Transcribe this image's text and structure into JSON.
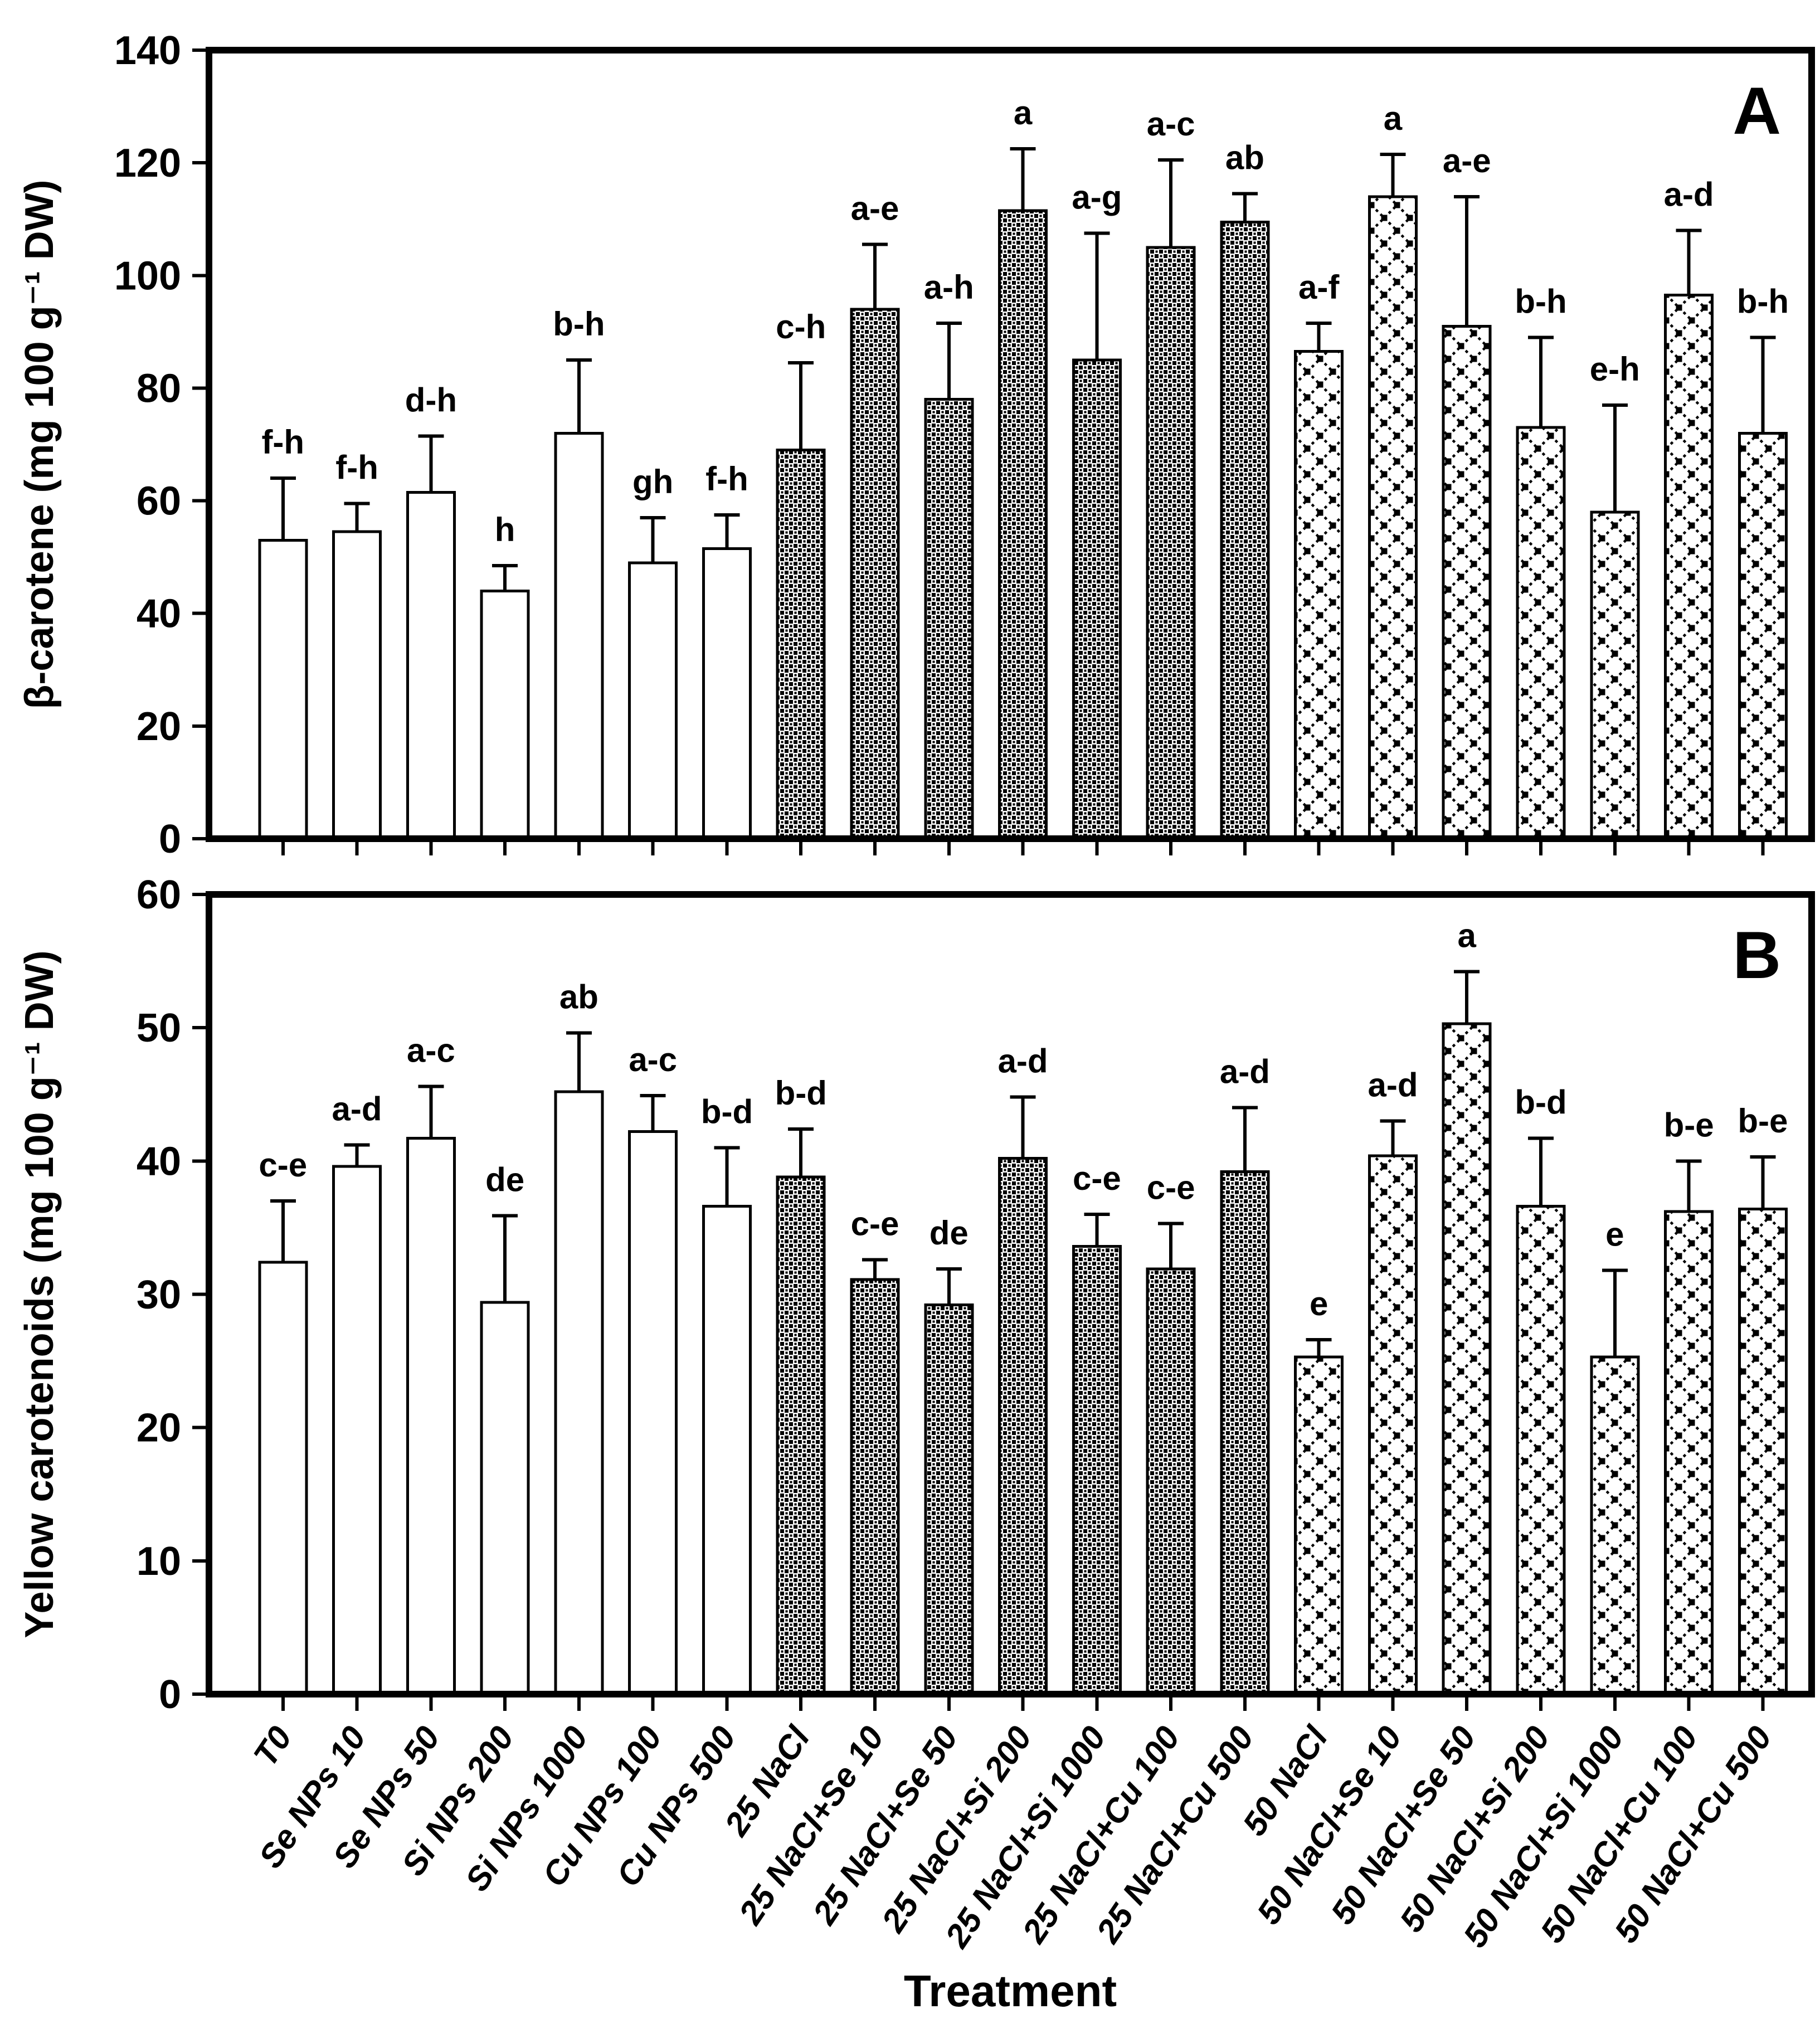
{
  "figure_background": "#ffffff",
  "ink_color": "#000000",
  "x_axis_title": "Treatment",
  "chart_data": [
    {
      "type": "bar",
      "panel_label": "A",
      "ylabel": "β-carotene (mg 100 g⁻¹ DW)",
      "xlabel": "Treatment",
      "ylim": [
        0,
        140
      ],
      "ytick_step": 20,
      "yticks": [
        0,
        20,
        40,
        60,
        80,
        100,
        120,
        140
      ],
      "grid": false,
      "legend": "none",
      "categories": [
        "T0",
        "Se NPs 10",
        "Se NPs 50",
        "Si NPs 200",
        "Si NPs 1000",
        "Cu NPs 100",
        "Cu NPs 500",
        "25 NaCl",
        "25 NaCl+Se 10",
        "25 NaCl+Se 50",
        "25 NaCl+Si 200",
        "25 NaCl+Si 1000",
        "25 NaCl+Cu 100",
        "25 NaCl+Cu 500",
        "50 NaCl",
        "50 NaCl+Se 10",
        "50 NaCl+Se 50",
        "50 NaCl+Si 200",
        "50 NaCl+Si 1000",
        "50 NaCl+Cu 100",
        "50 NaCl+Cu 500"
      ],
      "values": [
        53,
        54.5,
        61.5,
        44,
        72,
        49,
        51.5,
        69,
        94,
        78,
        111.5,
        85,
        105,
        109.5,
        86.5,
        114,
        91,
        73,
        58,
        96.5,
        72
      ],
      "errors_plus": [
        11,
        5,
        10,
        4.5,
        13,
        8,
        6,
        15.5,
        11.5,
        13.5,
        11,
        22.5,
        15.5,
        5,
        5,
        7.5,
        23,
        16,
        19,
        11.5,
        17
      ],
      "sig_letters": [
        "f-h",
        "f-h",
        "d-h",
        "h",
        "b-h",
        "gh",
        "f-h",
        "c-h",
        "a-e",
        "a-h",
        "a",
        "a-g",
        "a-c",
        "ab",
        "a-f",
        "a",
        "a-e",
        "b-h",
        "e-h",
        "a-d",
        "b-h"
      ],
      "bar_patterns": [
        "open",
        "open",
        "open",
        "open",
        "open",
        "open",
        "open",
        "fine",
        "fine",
        "fine",
        "fine",
        "fine",
        "fine",
        "fine",
        "diamond",
        "diamond",
        "diamond",
        "diamond",
        "diamond",
        "diamond",
        "diamond"
      ]
    },
    {
      "type": "bar",
      "panel_label": "B",
      "ylabel": "Yellow carotenoids (mg 100 g⁻¹ DW)",
      "xlabel": "Treatment",
      "ylim": [
        0,
        60
      ],
      "ytick_step": 10,
      "yticks": [
        0,
        10,
        20,
        30,
        40,
        50,
        60
      ],
      "grid": false,
      "legend": "none",
      "categories": [
        "T0",
        "Se NPs 10",
        "Se NPs 50",
        "Si NPs 200",
        "Si NPs 1000",
        "Cu NPs 100",
        "Cu NPs 500",
        "25 NaCl",
        "25 NaCl+Se 10",
        "25 NaCl+Se 50",
        "25 NaCl+Si 200",
        "25 NaCl+Si 1000",
        "25 NaCl+Cu 100",
        "25 NaCl+Cu 500",
        "50 NaCl",
        "50 NaCl+Se 10",
        "50 NaCl+Se 50",
        "50 NaCl+Si 200",
        "50 NaCl+Si 1000",
        "50 NaCl+Cu 100",
        "50 NaCl+Cu 500"
      ],
      "values": [
        32.4,
        39.6,
        41.7,
        29.4,
        45.2,
        42.2,
        36.6,
        38.8,
        31.1,
        29.2,
        40.2,
        33.6,
        31.9,
        39.2,
        25.3,
        40.4,
        50.3,
        36.6,
        25.3,
        36.2,
        36.4
      ],
      "errors_plus": [
        4.6,
        1.6,
        3.9,
        6.5,
        4.4,
        2.7,
        4.4,
        3.6,
        1.5,
        2.7,
        4.6,
        2.4,
        3.4,
        4.8,
        1.3,
        2.6,
        3.9,
        5.1,
        6.5,
        3.8,
        3.9
      ],
      "sig_letters": [
        "c-e",
        "a-d",
        "a-c",
        "de",
        "ab",
        "a-c",
        "b-d",
        "b-d",
        "c-e",
        "de",
        "a-d",
        "c-e",
        "c-e",
        "a-d",
        "e",
        "a-d",
        "a",
        "b-d",
        "e",
        "b-e",
        "b-e"
      ],
      "bar_patterns": [
        "open",
        "open",
        "open",
        "open",
        "open",
        "open",
        "open",
        "fine",
        "fine",
        "fine",
        "fine",
        "fine",
        "fine",
        "fine",
        "diamond",
        "diamond",
        "diamond",
        "diamond",
        "diamond",
        "diamond",
        "diamond"
      ]
    }
  ]
}
